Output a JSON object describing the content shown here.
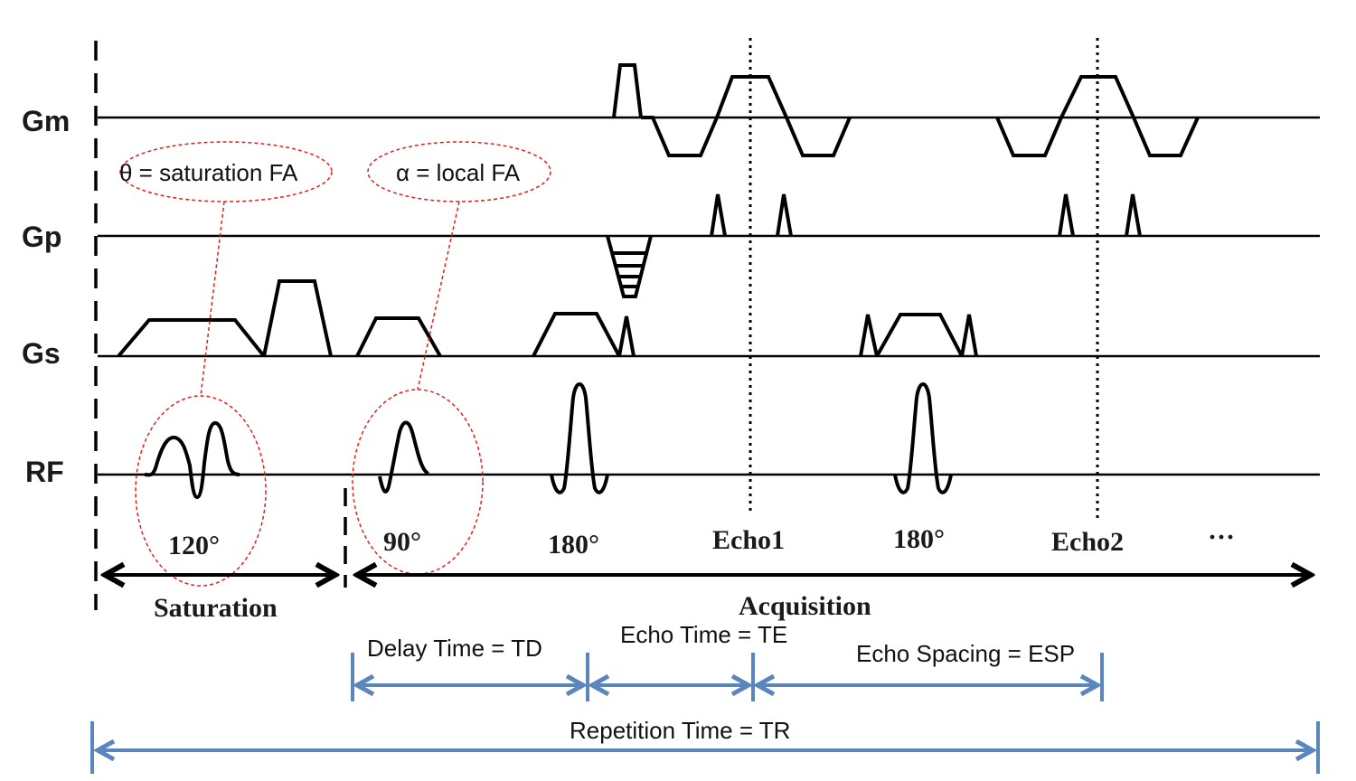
{
  "gradient_labels": {
    "gm": "Gm",
    "gp": "Gp",
    "gs": "Gs",
    "rf": "RF"
  },
  "flip_angles": {
    "saturation": "120°",
    "excitation": "90°",
    "refocus1": "180°",
    "echo1": "Echo1",
    "refocus2": "180°",
    "echo2": "Echo2",
    "more": "···"
  },
  "callouts": {
    "theta": "θ = saturation FA",
    "alpha": "α = local FA"
  },
  "phases": {
    "saturation": "Saturation",
    "acquisition": "Acquisition"
  },
  "timings": {
    "td": "Delay Time = TD",
    "te": "Echo Time = TE",
    "esp": "Echo Spacing = ESP",
    "tr": "Repetition Time = TR"
  },
  "colors": {
    "trace": "#000000",
    "callout": "#e02020",
    "timing": "#5b86bd"
  }
}
